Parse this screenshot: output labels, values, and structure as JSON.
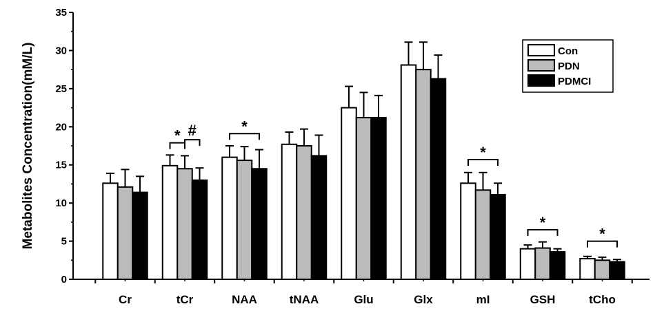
{
  "chart_data": {
    "type": "bar",
    "title": "",
    "xlabel": "",
    "ylabel": "Metabolites Concentration(mM/L)",
    "ylim": [
      0,
      35
    ],
    "yticks": [
      0,
      5,
      10,
      15,
      20,
      25,
      30,
      35
    ],
    "categories": [
      "Cr",
      "tCr",
      "NAA",
      "tNAA",
      "Glu",
      "Glx",
      "mI",
      "GSH",
      "tCho"
    ],
    "series": [
      {
        "name": "Con",
        "color": "#ffffff",
        "values": [
          12.6,
          14.9,
          16.0,
          17.7,
          22.5,
          28.1,
          12.6,
          4.0,
          2.7
        ],
        "errors": [
          1.3,
          1.4,
          1.5,
          1.6,
          2.8,
          3.0,
          1.4,
          0.5,
          0.3
        ]
      },
      {
        "name": "PDN",
        "color": "#bbbbbb",
        "values": [
          12.1,
          14.5,
          15.6,
          17.5,
          21.2,
          27.5,
          11.7,
          4.1,
          2.5
        ],
        "errors": [
          2.3,
          1.7,
          1.8,
          2.2,
          3.3,
          3.6,
          2.3,
          0.8,
          0.4
        ]
      },
      {
        "name": "PDMCI",
        "color": "#000000",
        "values": [
          11.4,
          13.0,
          14.5,
          16.2,
          21.2,
          26.3,
          11.1,
          3.6,
          2.3
        ],
        "errors": [
          2.1,
          1.6,
          2.5,
          2.7,
          2.9,
          3.1,
          1.5,
          0.4,
          0.3
        ]
      }
    ],
    "legend": {
      "position": "top-right",
      "entries": [
        "Con",
        "PDN",
        "PDMCI"
      ]
    },
    "annotations": [
      {
        "category": "tCr",
        "from": 0,
        "to": 1,
        "label": "*",
        "level": 17.9
      },
      {
        "category": "tCr",
        "from": 1,
        "to": 2,
        "label": "#",
        "level": 18.3
      },
      {
        "category": "NAA",
        "from": 0,
        "to": 2,
        "label": "*",
        "level": 19.1
      },
      {
        "category": "mI",
        "from": 0,
        "to": 2,
        "label": "*",
        "level": 15.7
      },
      {
        "category": "GSH",
        "from": 0,
        "to": 2,
        "label": "*",
        "level": 6.5
      },
      {
        "category": "tCho",
        "from": 0,
        "to": 2,
        "label": "*",
        "level": 5.0
      }
    ]
  }
}
